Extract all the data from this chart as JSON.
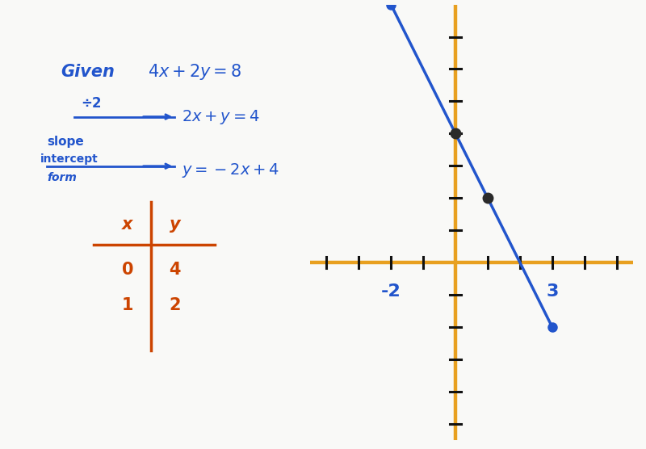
{
  "bg_color": "#f9f9f7",
  "axis_color": "#E8A020",
  "line_color": "#2255CC",
  "text_color_blue": "#2255CC",
  "text_color_orange": "#CC4400",
  "tick_color": "#111111",
  "dot_color": "#2a2a2a",
  "endpoint_color": "#2255CC",
  "points": [
    [
      0,
      4
    ],
    [
      1,
      2
    ]
  ],
  "x_start": -2,
  "x_end": 3,
  "graph_xlim": [
    -4.5,
    5.5
  ],
  "graph_ylim": [
    -5.5,
    8.0
  ],
  "x_ticks": [
    -4,
    -3,
    -2,
    -1,
    1,
    2,
    3,
    4,
    5
  ],
  "y_ticks": [
    -5,
    -4,
    -3,
    -2,
    -1,
    1,
    2,
    3,
    4,
    5,
    6,
    7
  ],
  "label_neg2": "-2",
  "label_3": "3"
}
